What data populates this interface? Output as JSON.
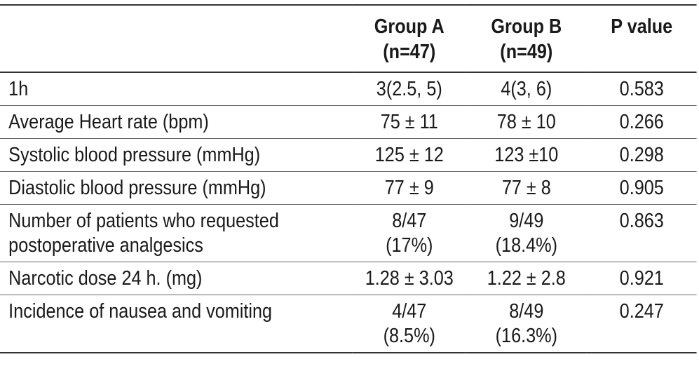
{
  "table": {
    "headers": [
      {
        "line1": "",
        "line2": ""
      },
      {
        "line1": "Group A",
        "line2": "(n=47)"
      },
      {
        "line1": "Group B",
        "line2": "(n=49)"
      },
      {
        "line1": "P value",
        "line2": ""
      }
    ],
    "rows": [
      {
        "label1": "1h",
        "label2": "",
        "a1": "3(2.5, 5)",
        "a2": "",
        "b1": "4(3, 6)",
        "b2": "",
        "p": "0.583"
      },
      {
        "label1": "Average Heart rate (bpm)",
        "label2": "",
        "a1": "75 ± 11",
        "a2": "",
        "b1": "78 ± 10",
        "b2": "",
        "p": "0.266"
      },
      {
        "label1": "Systolic blood pressure (mmHg)",
        "label2": "",
        "a1": "125 ± 12",
        "a2": "",
        "b1": "123 ±10",
        "b2": "",
        "p": "0.298"
      },
      {
        "label1": "Diastolic blood pressure (mmHg)",
        "label2": "",
        "a1": "77 ± 9",
        "a2": "",
        "b1": "77 ± 8",
        "b2": "",
        "p": "0.905"
      },
      {
        "label1": "Number of patients who requested",
        "label2": "postoperative analgesics",
        "a1": "8/47",
        "a2": "(17%)",
        "b1": "9/49",
        "b2": "(18.4%)",
        "p": "0.863"
      },
      {
        "label1": "Narcotic dose 24 h. (mg)",
        "label2": "",
        "a1": "1.28 ± 3.03",
        "a2": "",
        "b1": "1.22 ± 2.8",
        "b2": "",
        "p": "0.921"
      },
      {
        "label1": "Incidence of nausea and vomiting",
        "label2": "",
        "a1": "4/47",
        "a2": "(8.5%)",
        "b1": "8/49",
        "b2": "(16.3%)",
        "p": "0.247"
      }
    ]
  }
}
